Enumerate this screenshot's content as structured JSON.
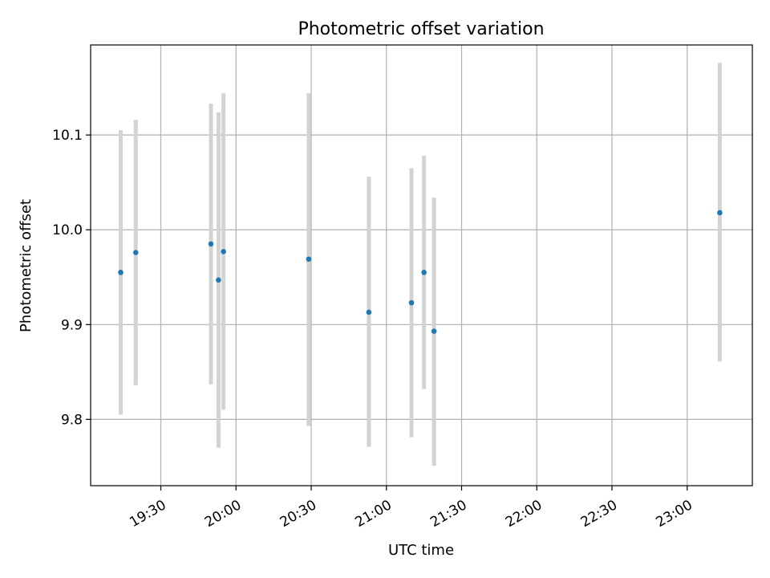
{
  "chart_data": {
    "type": "scatter",
    "title": "Photometric offset variation",
    "xlabel": "UTC time",
    "ylabel": "Photometric offset",
    "x_axis_kind": "time",
    "xlim": [
      "19:02",
      "23:26"
    ],
    "ylim": [
      9.73,
      10.195
    ],
    "grid": true,
    "x_ticks": [
      "19:30",
      "20:00",
      "20:30",
      "21:00",
      "21:30",
      "22:00",
      "22:30",
      "23:00"
    ],
    "y_ticks": [
      9.8,
      9.9,
      10.0,
      10.1
    ],
    "y_tick_labels": [
      "9.8",
      "9.9",
      "10.0",
      "10.1"
    ],
    "colors": {
      "marker": "#1f77b4",
      "errorbar": "#d3d3d3",
      "grid": "#b0b0b0"
    },
    "points": [
      {
        "x": "19:14",
        "y": 9.955,
        "ylow": 9.805,
        "yhigh": 10.105
      },
      {
        "x": "19:20",
        "y": 9.976,
        "ylow": 9.836,
        "yhigh": 10.116
      },
      {
        "x": "19:50",
        "y": 9.985,
        "ylow": 9.837,
        "yhigh": 10.133
      },
      {
        "x": "19:53",
        "y": 9.947,
        "ylow": 9.77,
        "yhigh": 10.124
      },
      {
        "x": "19:55",
        "y": 9.977,
        "ylow": 9.81,
        "yhigh": 10.144
      },
      {
        "x": "20:29",
        "y": 9.969,
        "ylow": 9.793,
        "yhigh": 10.144
      },
      {
        "x": "20:53",
        "y": 9.913,
        "ylow": 9.771,
        "yhigh": 10.056
      },
      {
        "x": "21:10",
        "y": 9.923,
        "ylow": 9.781,
        "yhigh": 10.065
      },
      {
        "x": "21:15",
        "y": 9.955,
        "ylow": 9.832,
        "yhigh": 10.078
      },
      {
        "x": "21:19",
        "y": 9.893,
        "ylow": 9.751,
        "yhigh": 10.034
      },
      {
        "x": "23:13",
        "y": 10.018,
        "ylow": 9.861,
        "yhigh": 10.176
      }
    ]
  }
}
